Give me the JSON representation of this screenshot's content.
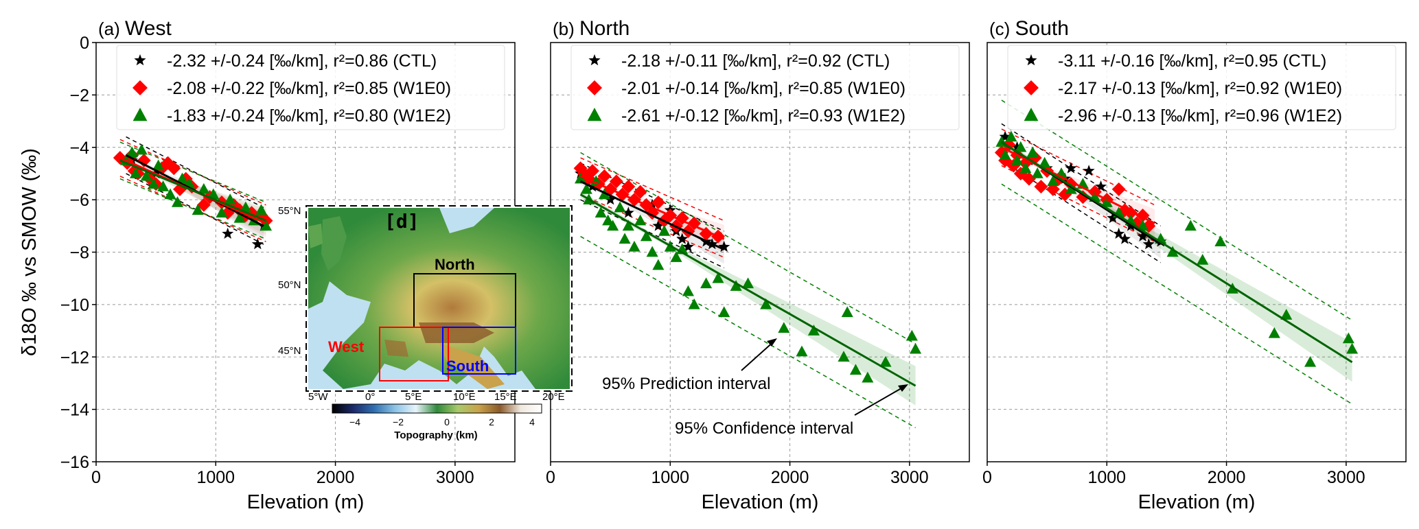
{
  "chart_data": [
    {
      "type": "scatter",
      "panel_label": "(a)",
      "title": "West",
      "xlabel": "Elevation (m)",
      "ylabel": "δ18O ‰ vs SMOW (‰)",
      "xlim": [
        0,
        3500
      ],
      "ylim": [
        -16,
        0
      ],
      "xticks": [
        "0",
        "1000",
        "2000",
        "3000"
      ],
      "yticks": [
        "0",
        "−2",
        "−4",
        "−6",
        "−8",
        "−10",
        "−12",
        "−14",
        "−16"
      ],
      "grid": true,
      "legend_position": "top",
      "series": [
        {
          "name": "-2.32 +/-0.24 [‰/km], r²=0.86 (CTL)",
          "marker": "star",
          "color": "#000000",
          "fit": {
            "x0": 250,
            "x1": 1400,
            "y0": -4.3,
            "y1": -7.0
          },
          "points": [
            [
              1100,
              -7.3
            ],
            [
              1350,
              -7.7
            ],
            [
              1400,
              -7.0
            ],
            [
              300,
              -4.5
            ],
            [
              500,
              -5.0
            ]
          ]
        },
        {
          "name": "-2.08 +/-0.22 [‰/km], r²=0.85 (W1E0)",
          "marker": "diamond",
          "color": "#ff0000",
          "fit": {
            "x0": 200,
            "x1": 1420,
            "y0": -4.4,
            "y1": -6.9
          },
          "points": [
            [
              200,
              -4.4
            ],
            [
              260,
              -4.6
            ],
            [
              300,
              -4.3
            ],
            [
              320,
              -4.9
            ],
            [
              350,
              -5.0
            ],
            [
              400,
              -4.5
            ],
            [
              450,
              -5.2
            ],
            [
              500,
              -5.4
            ],
            [
              550,
              -4.8
            ],
            [
              600,
              -4.6
            ],
            [
              650,
              -4.8
            ],
            [
              700,
              -5.6
            ],
            [
              750,
              -5.2
            ],
            [
              800,
              -5.5
            ],
            [
              900,
              -6.2
            ],
            [
              950,
              -5.9
            ],
            [
              1050,
              -6.1
            ],
            [
              1100,
              -6.5
            ],
            [
              1150,
              -6.2
            ],
            [
              1200,
              -6.4
            ],
            [
              1250,
              -6.6
            ],
            [
              1300,
              -6.5
            ],
            [
              1380,
              -6.6
            ],
            [
              1420,
              -6.8
            ]
          ]
        },
        {
          "name": "-1.83 +/-0.24 [‰/km], r²=0.80 (W1E2)",
          "marker": "triangle",
          "color": "#008000",
          "fit": {
            "x0": 200,
            "x1": 1420,
            "y0": -4.5,
            "y1": -6.8
          },
          "points": [
            [
              250,
              -4.5
            ],
            [
              300,
              -4.2
            ],
            [
              330,
              -5.0
            ],
            [
              380,
              -4.1
            ],
            [
              420,
              -5.1
            ],
            [
              480,
              -5.4
            ],
            [
              520,
              -4.7
            ],
            [
              560,
              -5.5
            ],
            [
              620,
              -5.8
            ],
            [
              680,
              -6.1
            ],
            [
              720,
              -5.2
            ],
            [
              780,
              -5.4
            ],
            [
              850,
              -6.4
            ],
            [
              900,
              -5.6
            ],
            [
              980,
              -5.8
            ],
            [
              1050,
              -6.5
            ],
            [
              1120,
              -6.0
            ],
            [
              1200,
              -6.7
            ],
            [
              1250,
              -6.3
            ],
            [
              1320,
              -6.8
            ],
            [
              1380,
              -6.4
            ],
            [
              1420,
              -7.0
            ]
          ]
        }
      ],
      "annotations": []
    },
    {
      "type": "scatter",
      "panel_label": "(b)",
      "title": "North",
      "xlabel": "Elevation (m)",
      "ylabel": "",
      "xlim": [
        0,
        3500
      ],
      "ylim": [
        -16,
        0
      ],
      "xticks": [
        "0",
        "1000",
        "2000",
        "3000"
      ],
      "yticks": [],
      "grid": true,
      "legend_position": "top",
      "series": [
        {
          "name": "-2.18 +/-0.11 [‰/km], r²=0.92 (CTL)",
          "marker": "star",
          "color": "#000000",
          "fit": {
            "x0": 250,
            "x1": 1450,
            "y0": -5.3,
            "y1": -7.9
          },
          "points": [
            [
              250,
              -5.0
            ],
            [
              350,
              -5.5
            ],
            [
              500,
              -6.0
            ],
            [
              650,
              -6.5
            ],
            [
              850,
              -6.2
            ],
            [
              900,
              -7.0
            ],
            [
              1000,
              -6.4
            ],
            [
              1050,
              -7.2
            ],
            [
              1100,
              -7.5
            ],
            [
              1150,
              -7.8
            ],
            [
              1300,
              -7.6
            ],
            [
              1350,
              -7.7
            ],
            [
              1450,
              -7.8
            ]
          ]
        },
        {
          "name": "-2.01 +/-0.14 [‰/km], r²=0.85 (W1E0)",
          "marker": "diamond",
          "color": "#ff0000",
          "fit": {
            "x0": 250,
            "x1": 1450,
            "y0": -5.1,
            "y1": -7.5
          },
          "points": [
            [
              250,
              -4.8
            ],
            [
              280,
              -5.0
            ],
            [
              320,
              -5.2
            ],
            [
              350,
              -4.9
            ],
            [
              400,
              -5.4
            ],
            [
              450,
              -5.1
            ],
            [
              500,
              -5.6
            ],
            [
              550,
              -5.3
            ],
            [
              600,
              -5.8
            ],
            [
              650,
              -5.5
            ],
            [
              700,
              -6.0
            ],
            [
              750,
              -5.7
            ],
            [
              800,
              -6.2
            ],
            [
              850,
              -6.5
            ],
            [
              900,
              -6.1
            ],
            [
              950,
              -6.8
            ],
            [
              1000,
              -6.6
            ],
            [
              1050,
              -7.0
            ],
            [
              1100,
              -6.7
            ],
            [
              1150,
              -7.2
            ],
            [
              1200,
              -6.9
            ],
            [
              1300,
              -7.3
            ],
            [
              1400,
              -7.4
            ]
          ]
        },
        {
          "name": "-2.61 +/-0.12 [‰/km], r²=0.93 (W1E2)",
          "marker": "triangle",
          "color": "#008000",
          "fit": {
            "x0": 250,
            "x1": 3050,
            "y0": -5.8,
            "y1": -13.1
          },
          "conf_band": true,
          "points": [
            [
              250,
              -5.2
            ],
            [
              300,
              -5.6
            ],
            [
              320,
              -6.0
            ],
            [
              380,
              -5.3
            ],
            [
              420,
              -6.5
            ],
            [
              450,
              -5.8
            ],
            [
              480,
              -6.8
            ],
            [
              520,
              -7.0
            ],
            [
              580,
              -6.3
            ],
            [
              620,
              -7.5
            ],
            [
              650,
              -7.0
            ],
            [
              700,
              -7.8
            ],
            [
              750,
              -6.8
            ],
            [
              800,
              -7.4
            ],
            [
              850,
              -8.0
            ],
            [
              900,
              -8.5
            ],
            [
              950,
              -7.2
            ],
            [
              1000,
              -7.8
            ],
            [
              1050,
              -8.2
            ],
            [
              1100,
              -7.9
            ],
            [
              1150,
              -9.5
            ],
            [
              1200,
              -10.0
            ],
            [
              1300,
              -9.2
            ],
            [
              1400,
              -9.0
            ],
            [
              1450,
              -10.3
            ],
            [
              1550,
              -9.3
            ],
            [
              1650,
              -9.2
            ],
            [
              1800,
              -10.0
            ],
            [
              1950,
              -10.9
            ],
            [
              2100,
              -11.8
            ],
            [
              2200,
              -11.0
            ],
            [
              2450,
              -12.0
            ],
            [
              2480,
              -10.3
            ],
            [
              2550,
              -12.5
            ],
            [
              2650,
              -12.8
            ],
            [
              2800,
              -12.2
            ],
            [
              3020,
              -11.2
            ],
            [
              3050,
              -11.7
            ]
          ]
        }
      ],
      "annotations": [
        "95% Prediction interval",
        "95% Confidence interval"
      ]
    },
    {
      "type": "scatter",
      "panel_label": "(c)",
      "title": "South",
      "xlabel": "Elevation (m)",
      "ylabel": "",
      "xlim": [
        0,
        3500
      ],
      "ylim": [
        -16,
        0
      ],
      "xticks": [
        "0",
        "1000",
        "2000",
        "3000"
      ],
      "yticks": [],
      "grid": true,
      "legend_position": "top",
      "series": [
        {
          "name": "-3.11 +/-0.16 [‰/km], r²=0.95 (CTL)",
          "marker": "star",
          "color": "#000000",
          "fit": {
            "x0": 120,
            "x1": 1450,
            "y0": -3.8,
            "y1": -7.7
          },
          "points": [
            [
              150,
              -3.6
            ],
            [
              250,
              -4.0
            ],
            [
              350,
              -4.5
            ],
            [
              500,
              -4.8
            ],
            [
              650,
              -5.2
            ],
            [
              700,
              -4.8
            ],
            [
              850,
              -4.9
            ],
            [
              950,
              -5.5
            ],
            [
              1000,
              -6.1
            ],
            [
              1050,
              -6.7
            ],
            [
              1100,
              -7.3
            ],
            [
              1150,
              -7.5
            ],
            [
              1200,
              -7.0
            ],
            [
              1300,
              -7.4
            ],
            [
              1350,
              -7.7
            ],
            [
              1450,
              -7.6
            ]
          ]
        },
        {
          "name": "-2.17 +/-0.13 [‰/km], r²=0.92 (W1E0)",
          "marker": "diamond",
          "color": "#ff0000",
          "fit": {
            "x0": 120,
            "x1": 1400,
            "y0": -4.0,
            "y1": -6.9
          },
          "points": [
            [
              120,
              -4.2
            ],
            [
              150,
              -4.5
            ],
            [
              180,
              -3.9
            ],
            [
              220,
              -4.7
            ],
            [
              250,
              -4.3
            ],
            [
              280,
              -5.0
            ],
            [
              320,
              -4.6
            ],
            [
              350,
              -5.2
            ],
            [
              400,
              -4.4
            ],
            [
              450,
              -5.5
            ],
            [
              500,
              -4.9
            ],
            [
              550,
              -5.6
            ],
            [
              600,
              -5.2
            ],
            [
              650,
              -5.8
            ],
            [
              700,
              -5.4
            ],
            [
              800,
              -5.9
            ],
            [
              900,
              -5.7
            ],
            [
              1000,
              -6.0
            ],
            [
              1100,
              -5.6
            ],
            [
              1150,
              -6.4
            ],
            [
              1200,
              -6.5
            ],
            [
              1250,
              -6.9
            ],
            [
              1300,
              -6.6
            ],
            [
              1350,
              -7.0
            ]
          ]
        },
        {
          "name": "-2.96 +/-0.13 [‰/km], r²=0.96 (W1E2)",
          "marker": "triangle",
          "color": "#008000",
          "fit": {
            "x0": 120,
            "x1": 3050,
            "y0": -3.8,
            "y1": -12.2
          },
          "conf_band": true,
          "points": [
            [
              120,
              -3.8
            ],
            [
              150,
              -4.3
            ],
            [
              200,
              -3.6
            ],
            [
              250,
              -4.5
            ],
            [
              280,
              -4.0
            ],
            [
              320,
              -4.8
            ],
            [
              380,
              -4.2
            ],
            [
              420,
              -5.0
            ],
            [
              480,
              -4.6
            ],
            [
              550,
              -5.3
            ],
            [
              620,
              -5.0
            ],
            [
              700,
              -5.6
            ],
            [
              800,
              -5.4
            ],
            [
              900,
              -5.9
            ],
            [
              1000,
              -6.1
            ],
            [
              1100,
              -6.5
            ],
            [
              1200,
              -6.8
            ],
            [
              1300,
              -7.0
            ],
            [
              1450,
              -7.5
            ],
            [
              1550,
              -8.0
            ],
            [
              1700,
              -7.0
            ],
            [
              1800,
              -8.3
            ],
            [
              1950,
              -7.6
            ],
            [
              2050,
              -9.4
            ],
            [
              2400,
              -11.1
            ],
            [
              2500,
              -10.4
            ],
            [
              2700,
              -12.2
            ],
            [
              3020,
              -11.3
            ],
            [
              3050,
              -11.7
            ]
          ]
        }
      ],
      "annotations": []
    }
  ],
  "inset_map": {
    "label": "[d]",
    "lat_ticks": [
      "55°N",
      "50°N",
      "45°N"
    ],
    "lon_ticks": [
      "5°W",
      "0°",
      "5°E",
      "10°E",
      "15°E",
      "20°E"
    ],
    "regions": [
      {
        "name": "North",
        "color": "#000000"
      },
      {
        "name": "West",
        "color": "#ff0000"
      },
      {
        "name": "South",
        "color": "#0000ff"
      }
    ],
    "colorbar": {
      "title": "Topography (km)",
      "ticks": [
        "−4",
        "−2",
        "0",
        "2",
        "4"
      ],
      "colors": [
        "#000000",
        "#1b2a6b",
        "#2f6fb0",
        "#8cc3e6",
        "#e8f4fb",
        "#2f8a3a",
        "#a9c96a",
        "#c9a24b",
        "#8a5a2a",
        "#f0e8df",
        "#ffffff"
      ]
    }
  }
}
